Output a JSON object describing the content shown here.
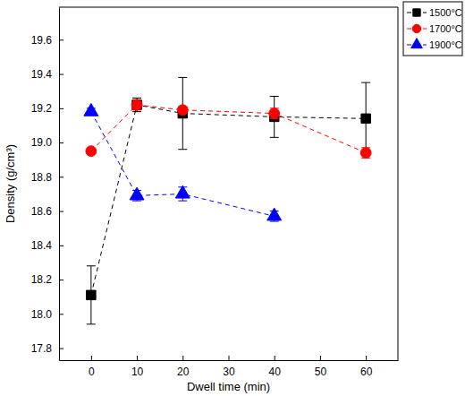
{
  "chart_data": {
    "type": "line",
    "x_label": "Dwell time (min)",
    "y_label": "Density (g/cm³)",
    "xlim": [
      -7,
      67
    ],
    "xticks": [
      0,
      10,
      20,
      30,
      40,
      50,
      60
    ],
    "ylim": [
      17.73,
      19.79
    ],
    "yticks": [
      17.8,
      {
        "value": 18,
        "label": "18.0"
      },
      18.2,
      18.4,
      18.6,
      18.8,
      {
        "value": 19,
        "label": "19.0"
      },
      19.2,
      19.4,
      19.6
    ],
    "legend": "top-right",
    "grid": false,
    "line_style": "dashed",
    "series": [
      {
        "name": "1500°C",
        "color": "#000000",
        "marker": "square",
        "x": [
          0,
          10,
          20,
          40,
          60
        ],
        "values": [
          18.11,
          19.22,
          19.17,
          19.15,
          19.14
        ],
        "errors": [
          0.17,
          0.04,
          0.21,
          0.12,
          0.21
        ]
      },
      {
        "name": "1700°C",
        "color": "#ff0000",
        "marker": "circle",
        "x": [
          0,
          10,
          20,
          40,
          60
        ],
        "values": [
          18.95,
          19.22,
          19.19,
          19.17,
          18.94
        ],
        "errors": [
          0.01,
          0.03,
          0.02,
          0.03,
          0.03
        ]
      },
      {
        "name": "1900°C",
        "color": "#0000ff",
        "marker": "triangle",
        "x": [
          0,
          10,
          20,
          40
        ],
        "values": [
          19.18,
          18.69,
          18.7,
          18.57
        ],
        "errors": [
          0.02,
          0.03,
          0.04,
          0.03
        ]
      }
    ]
  }
}
